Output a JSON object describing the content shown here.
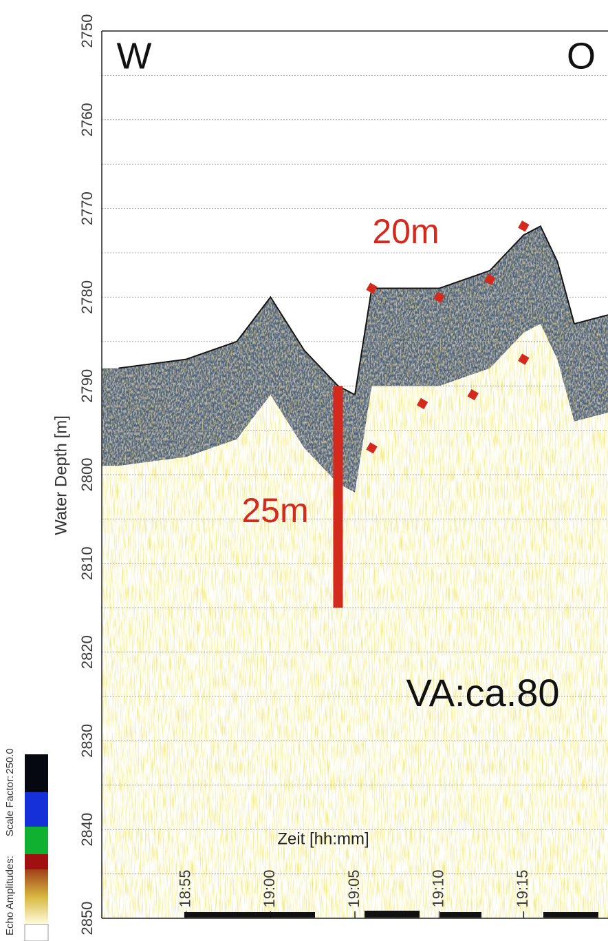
{
  "chart_data": {
    "type": "echogram",
    "y_label": "Water Depth [m]",
    "x_label": "Zeit [hh:mm]",
    "annotations": {
      "west": "W",
      "east": "O",
      "upper": "20m",
      "lower": "25m",
      "velocity": "VA:ca.80"
    },
    "ylim": [
      2750,
      2850
    ],
    "yticks": [
      2750,
      2760,
      2770,
      2780,
      2790,
      2800,
      2810,
      2820,
      2830,
      2840,
      2850
    ],
    "minor_yticks": [
      2755,
      2765,
      2775,
      2785,
      2795,
      2805,
      2815,
      2825,
      2835,
      2845
    ],
    "xlim": [
      "18:50",
      "19:20"
    ],
    "xticks": [
      "18:55",
      "19:00",
      "19:05",
      "19:10",
      "19:15"
    ],
    "grid": true,
    "series": [
      {
        "color": "#141414",
        "x": [
          "18:51",
          "18:55",
          "18:58",
          "19:00",
          "19:02",
          "19:04",
          "19:05",
          "19:06",
          "19:10",
          "19:13",
          "19:15",
          "19:16",
          "19:17",
          "19:18",
          "19:20"
        ],
        "values": [
          2788,
          2787,
          2785,
          2780,
          2786,
          2790,
          2791,
          2779,
          2779,
          2777,
          2773,
          2772,
          2776,
          2783,
          2782
        ]
      },
      {
        "color": "#d42a1e",
        "x": [
          "19:06",
          "19:10",
          "19:13",
          "19:15",
          "19:15",
          "19:12",
          "19:09",
          "19:06"
        ],
        "values": [
          2779,
          2780,
          2778,
          2772,
          2787,
          2791,
          2792,
          2797
        ]
      }
    ],
    "scale_bar": {
      "color": "#d42a1e",
      "x": "19:04",
      "values": [
        2790,
        2815
      ]
    },
    "colorbar": {
      "label": "Echo Amplitudes:",
      "scale_label": "Scale Factor:",
      "scale_max": {
        "value": 250,
        "label": "250.0"
      }
    }
  }
}
